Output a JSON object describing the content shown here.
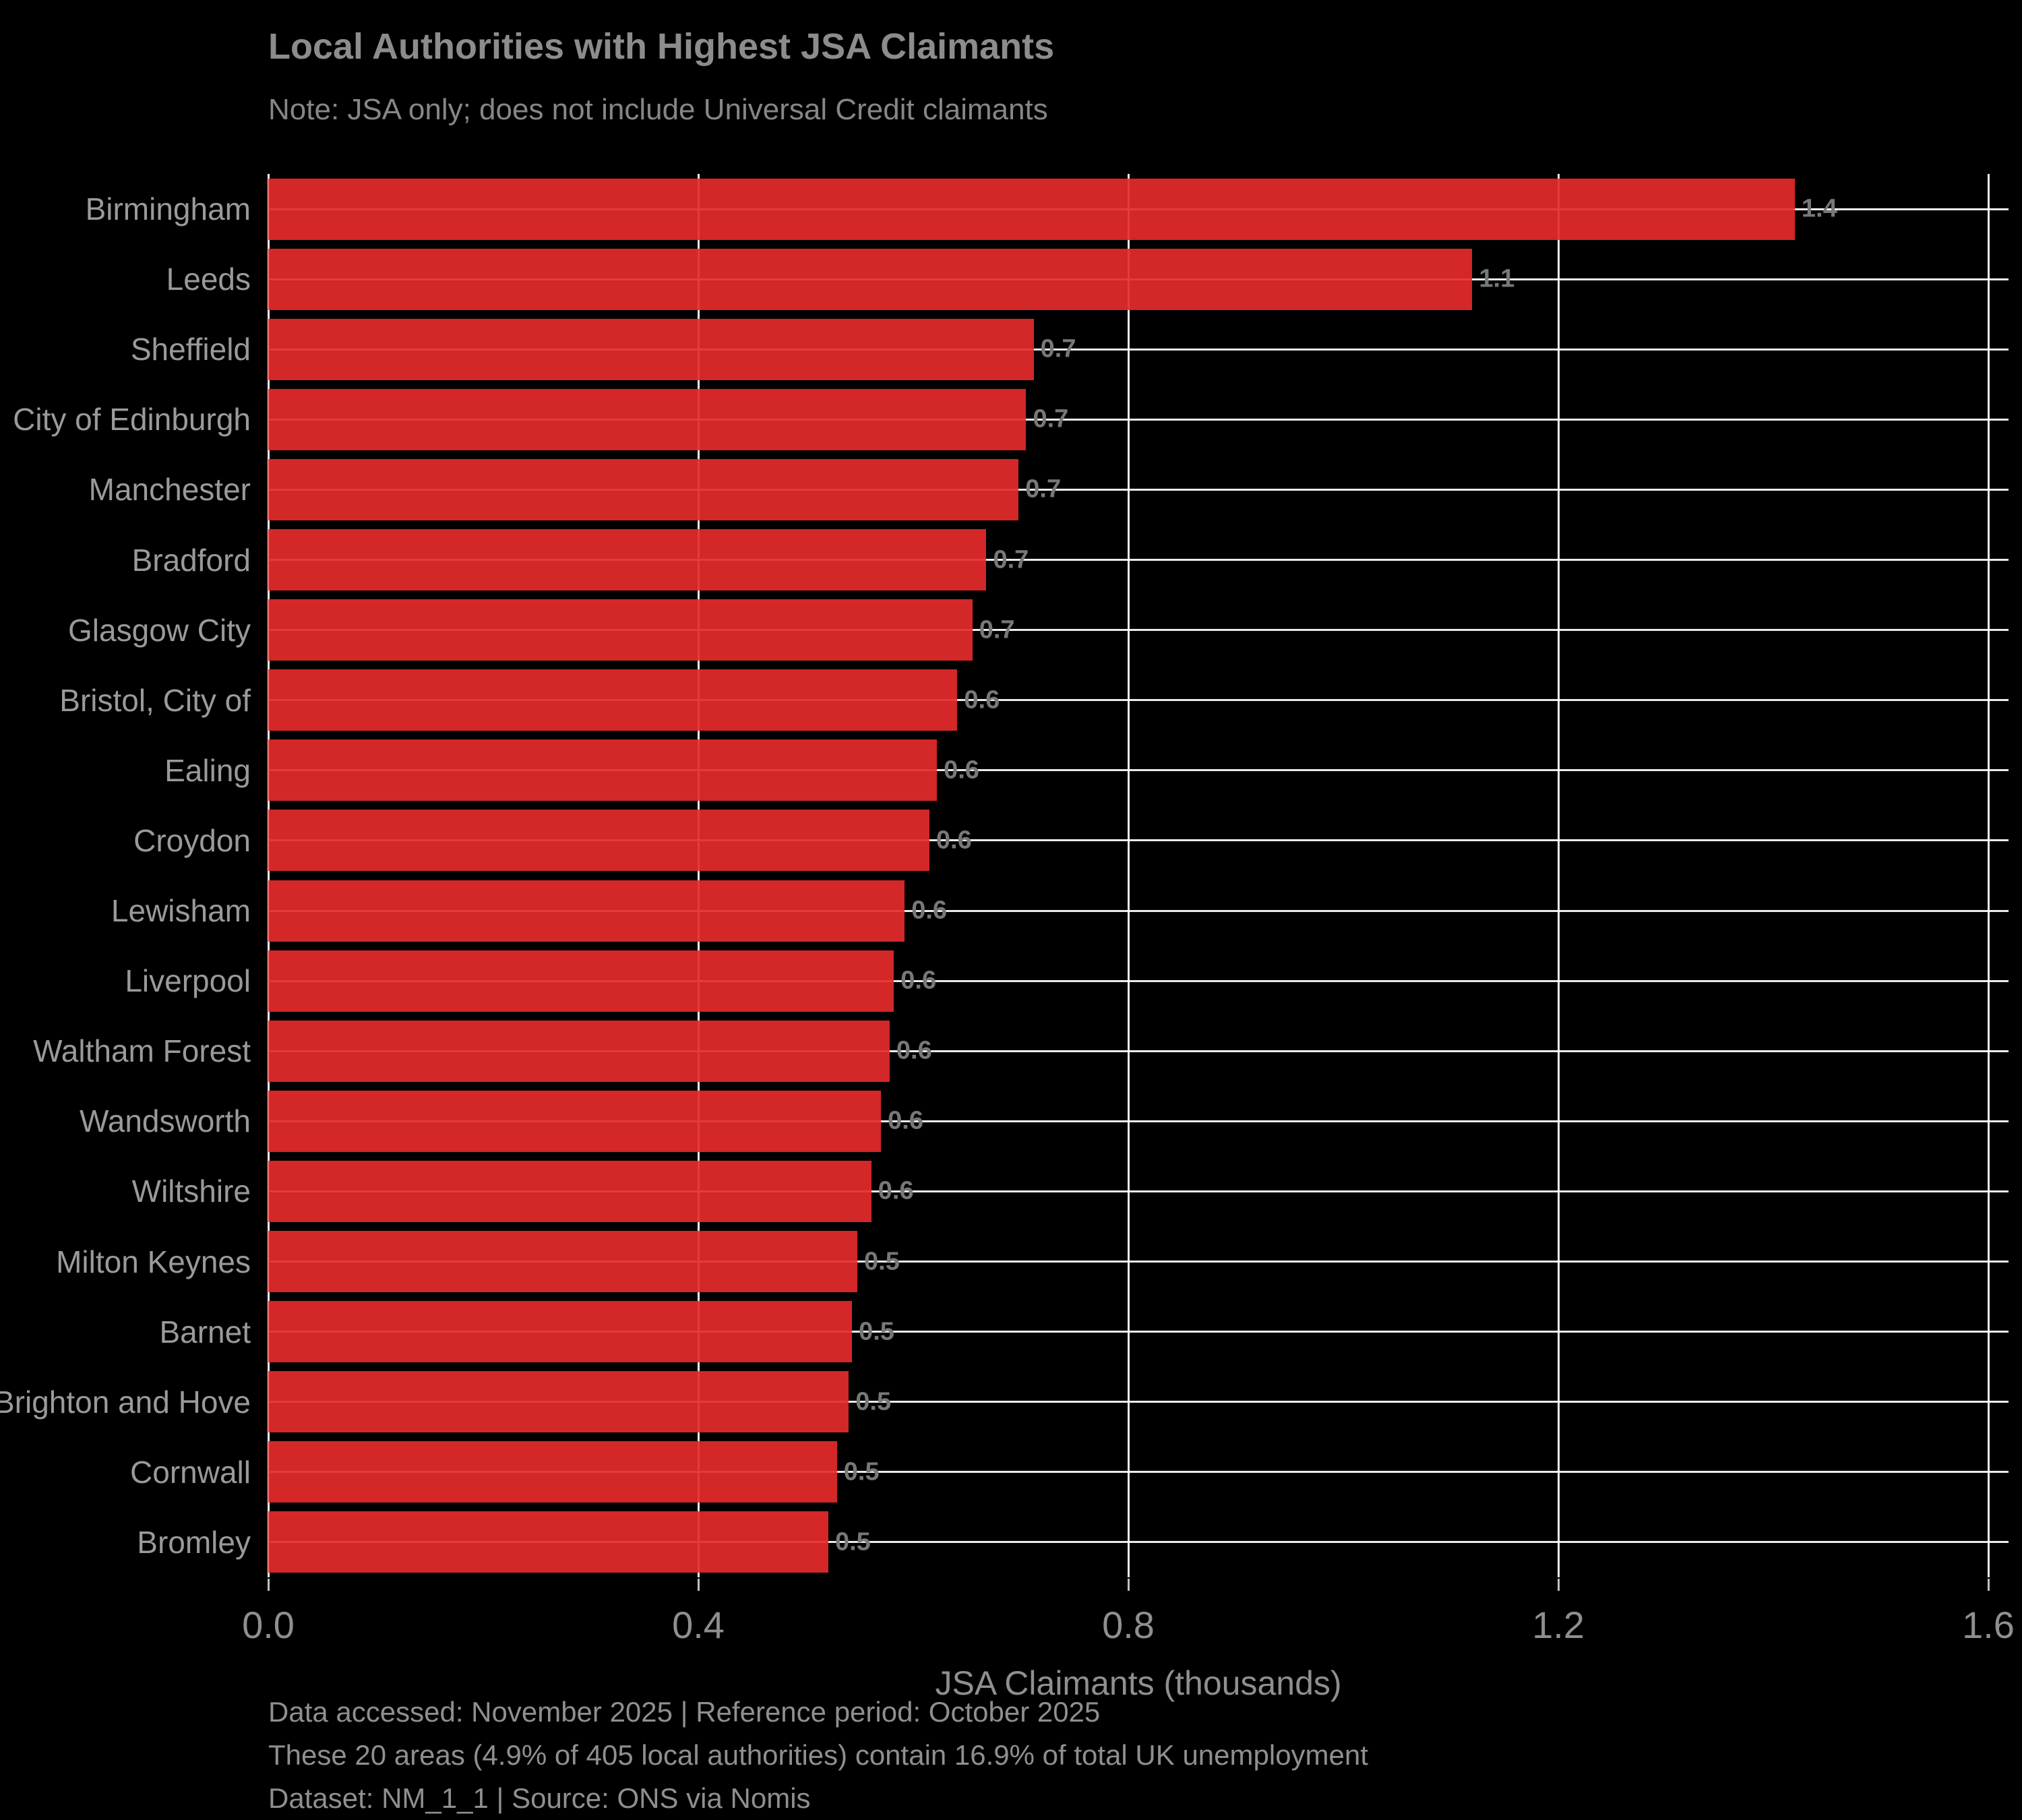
{
  "page": {
    "background_color": "#000000",
    "accent_color": "#d62a2a",
    "grid_color": "#ffffff",
    "text_color": "#8c8c8c"
  },
  "header": {
    "title": "Local Authorities with Highest JSA Claimants",
    "subtitle": "Note: JSA only; does not include Universal Credit claimants"
  },
  "chart_data": {
    "type": "bar",
    "orientation": "horizontal",
    "title": "Local Authorities with Highest JSA Claimants",
    "subtitle": "Note: JSA only; does not include Universal Credit claimants",
    "categories": [
      "Birmingham",
      "Leeds",
      "Sheffield",
      "City of Edinburgh",
      "Manchester",
      "Bradford",
      "Glasgow City",
      "Bristol, City of",
      "Ealing",
      "Croydon",
      "Lewisham",
      "Liverpool",
      "Waltham Forest",
      "Wandsworth",
      "Wiltshire",
      "Milton Keynes",
      "Barnet",
      "Brighton and Hove",
      "Cornwall",
      "Bromley"
    ],
    "values": [
      1.42,
      1.12,
      0.712,
      0.705,
      0.698,
      0.668,
      0.655,
      0.641,
      0.622,
      0.615,
      0.592,
      0.582,
      0.578,
      0.57,
      0.561,
      0.548,
      0.543,
      0.54,
      0.529,
      0.521
    ],
    "bar_labels": [
      "1.4",
      "1.1",
      "0.7",
      "0.7",
      "0.7",
      "0.7",
      "0.7",
      "0.6",
      "0.6",
      "0.6",
      "0.6",
      "0.6",
      "0.6",
      "0.6",
      "0.6",
      "0.5",
      "0.5",
      "0.5",
      "0.5",
      "0.5"
    ],
    "xlabel": "JSA Claimants (thousands)",
    "ylabel": "",
    "x_tick_labels": [
      "0.0",
      "0.4",
      "0.8",
      "1.2",
      "1.6"
    ],
    "xlim": [
      0,
      1.619
    ],
    "grid": "on",
    "legend": "none",
    "bar_color": "#d62a2a",
    "grid_color": "#ffffff"
  },
  "footer": {
    "lines": [
      "Data accessed: November 2025 | Reference period: October 2025",
      "These 20 areas (4.9% of 405 local authorities) contain 16.9% of total UK unemployment",
      "Dataset: NM_1_1 | Source: ONS via Nomis"
    ]
  }
}
